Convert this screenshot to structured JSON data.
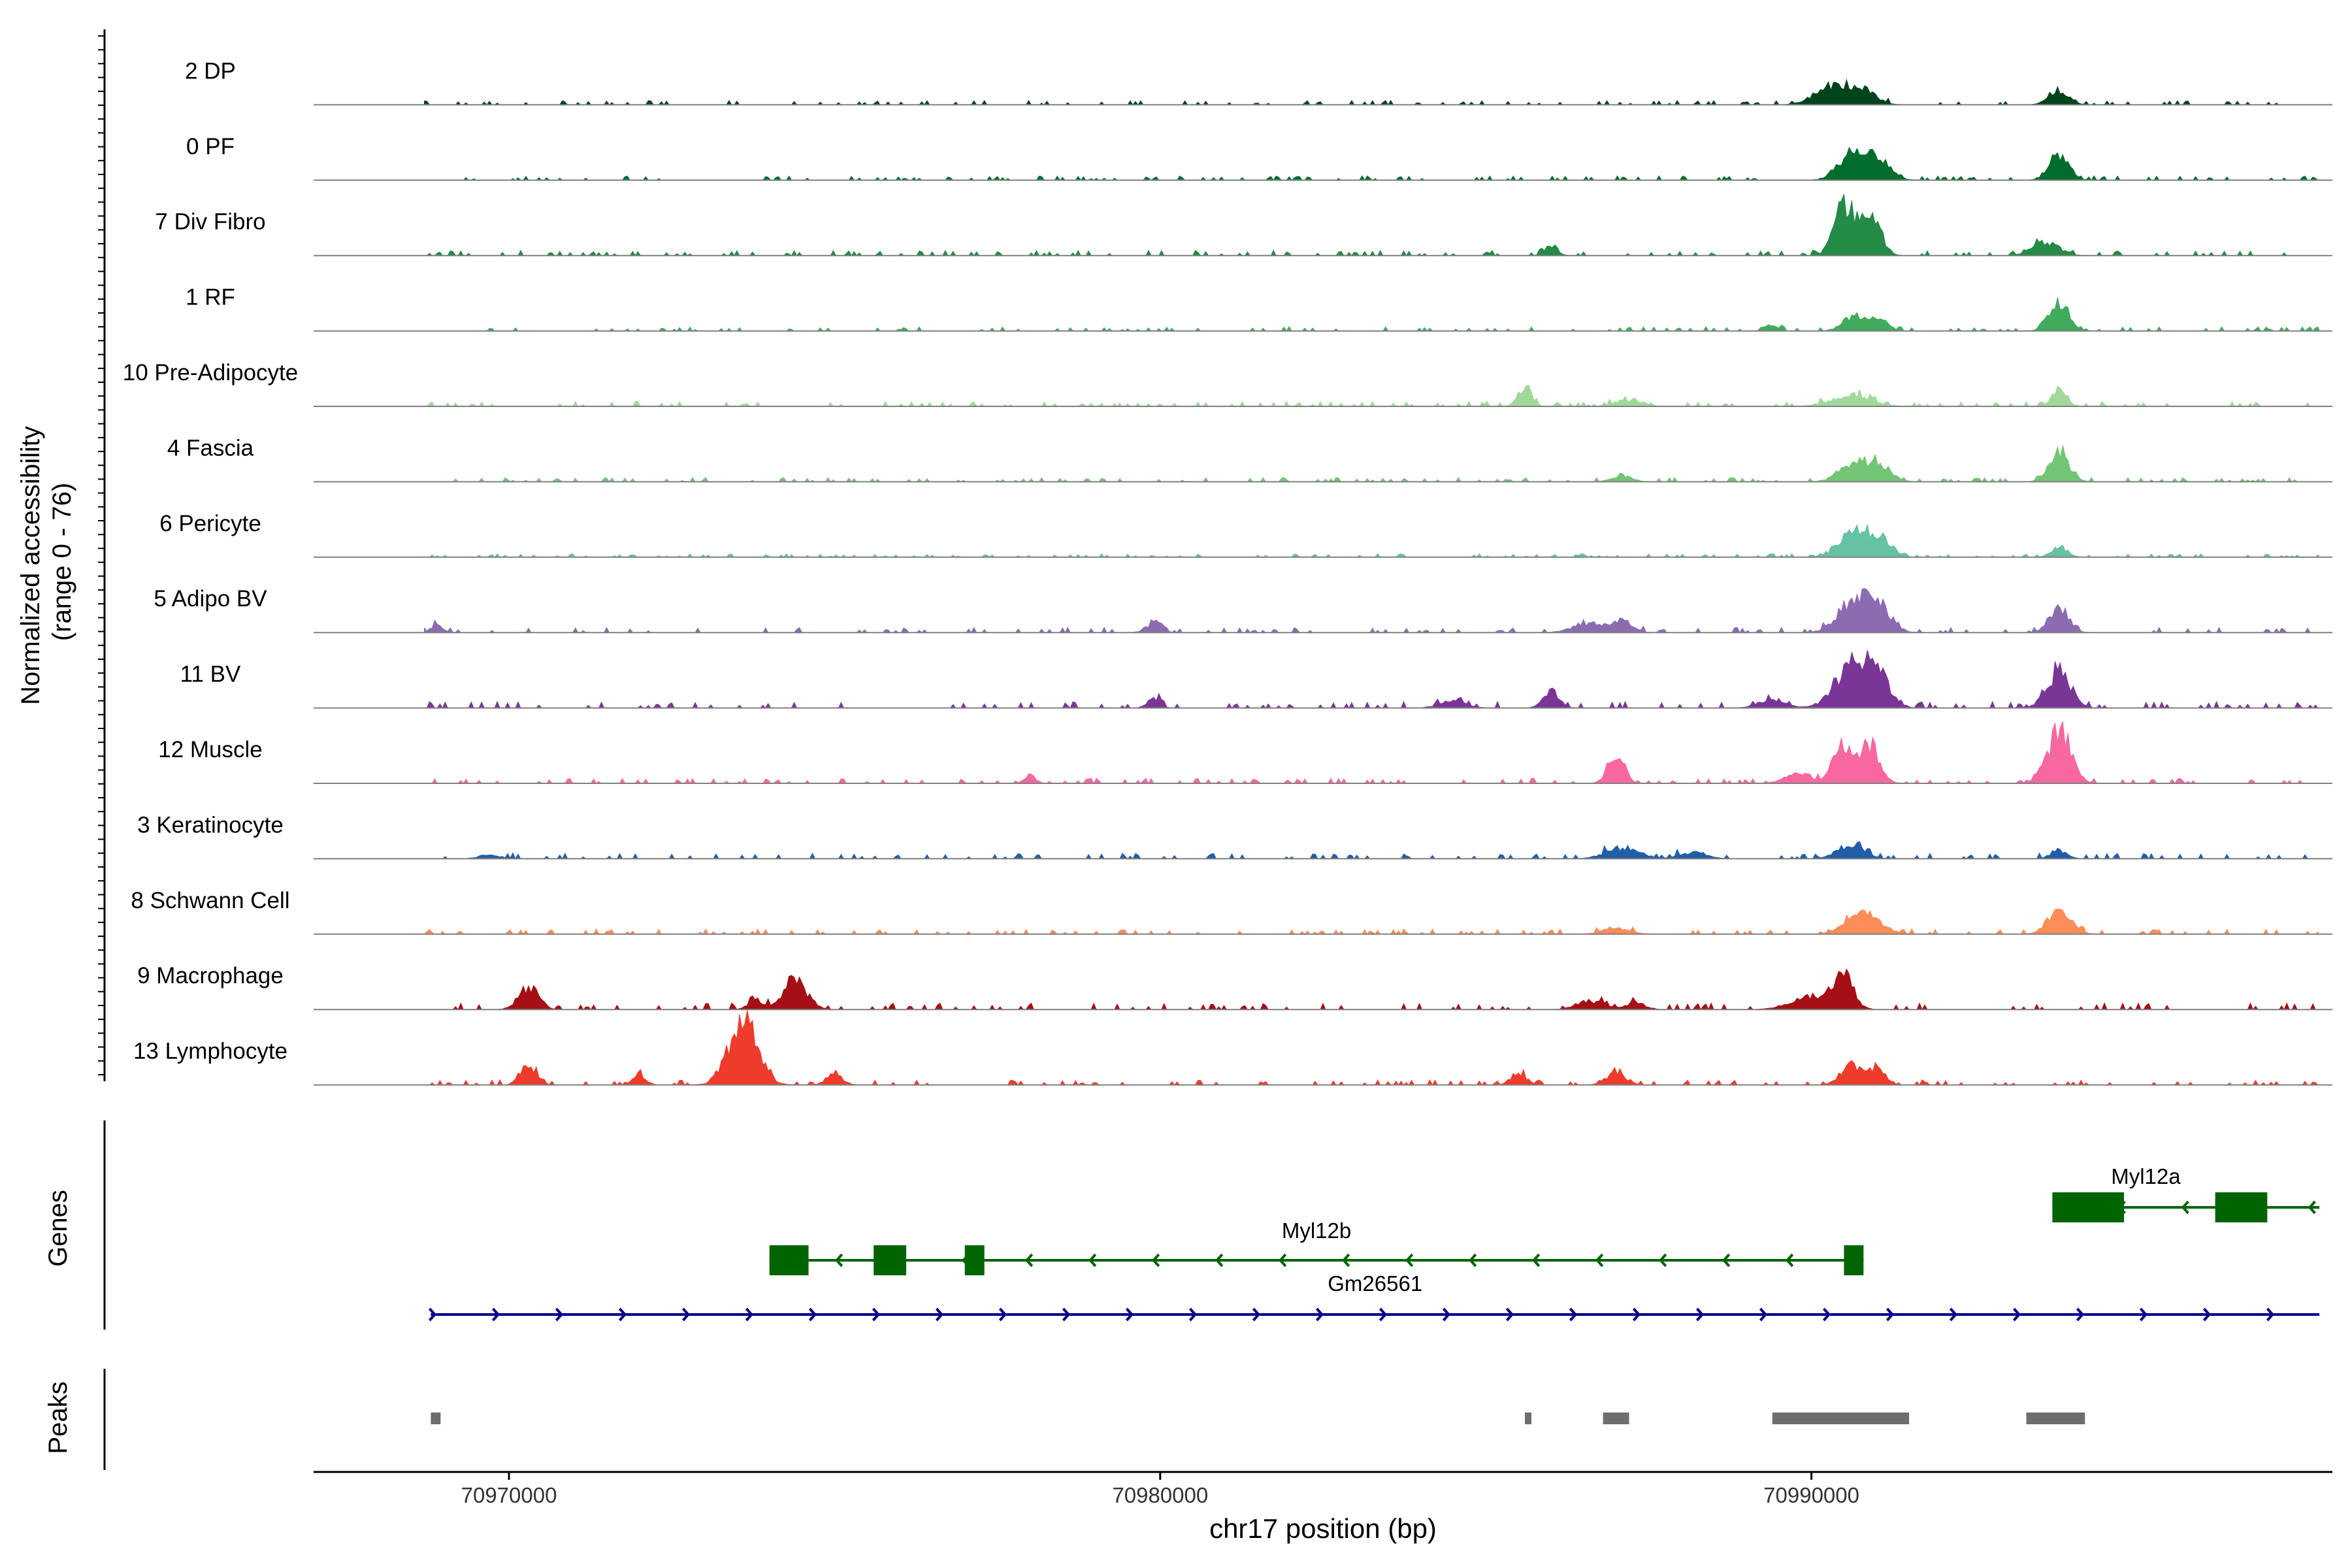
{
  "chart_data": {
    "type": "area",
    "chromosome": "chr17",
    "xlabel": "chr17 position (bp)",
    "xlim": [
      70967000,
      70998000
    ],
    "xticks": [
      70970000,
      70980000,
      70990000
    ],
    "x_tick_labels": [
      "70970000",
      "70980000",
      "70990000"
    ],
    "coverage_ylabel": "Normalized accessibility\n(range 0 - 76)",
    "coverage_ylabel_line1": "Normalized accessibility",
    "coverage_ylabel_line2": "(range 0 - 76)",
    "ylim": [
      0,
      76
    ],
    "genes_ylabel": "Genes",
    "peaks_ylabel": "Peaks",
    "grid": false,
    "tracks": [
      {
        "name": "2 DP",
        "color": "#00441b",
        "bg": 1.0,
        "peaks": [
          [
            70990300,
            8,
            250
          ],
          [
            70990800,
            6,
            200
          ],
          [
            70993800,
            6,
            150
          ]
        ]
      },
      {
        "name": "0 PF",
        "color": "#006d2c",
        "bg": 1.0,
        "peaks": [
          [
            70990600,
            11,
            200
          ],
          [
            70991000,
            9,
            200
          ],
          [
            70993800,
            12,
            150
          ]
        ]
      },
      {
        "name": "7 Div Fibro",
        "color": "#238b45",
        "bg": 1.2,
        "peaks": [
          [
            70990500,
            22,
            150
          ],
          [
            70990900,
            21,
            150
          ],
          [
            70993600,
            6,
            200
          ],
          [
            70986000,
            4,
            100
          ]
        ]
      },
      {
        "name": "1 RF",
        "color": "#41ab5d",
        "bg": 1.0,
        "peaks": [
          [
            70990600,
            6,
            150
          ],
          [
            70991000,
            6,
            150
          ],
          [
            70993800,
            13,
            150
          ],
          [
            70989400,
            3,
            100
          ]
        ]
      },
      {
        "name": "10 Pre-Adipocyte",
        "color": "#a1d99b",
        "bg": 1.2,
        "peaks": [
          [
            70985600,
            9,
            100
          ],
          [
            70990600,
            5,
            300
          ],
          [
            70993800,
            6,
            120
          ],
          [
            70987200,
            3,
            200
          ]
        ]
      },
      {
        "name": "4 Fascia",
        "color": "#74c476",
        "bg": 1.0,
        "peaks": [
          [
            70990600,
            7,
            200
          ],
          [
            70991000,
            8,
            200
          ],
          [
            70993800,
            14,
            150
          ],
          [
            70987100,
            3,
            150
          ]
        ]
      },
      {
        "name": "6 Pericyte",
        "color": "#66c2a4",
        "bg": 0.8,
        "peaks": [
          [
            70990700,
            12,
            250
          ],
          [
            70991100,
            6,
            150
          ],
          [
            70993800,
            5,
            120
          ]
        ]
      },
      {
        "name": "5 Adipo BV",
        "color": "#8c6bb1",
        "bg": 1.2,
        "peaks": [
          [
            70990600,
            12,
            220
          ],
          [
            70991000,
            13,
            200
          ],
          [
            70993800,
            10,
            150
          ],
          [
            70986600,
            4,
            250
          ],
          [
            70987100,
            5,
            150
          ],
          [
            70979900,
            4,
            120
          ],
          [
            70968900,
            3,
            100
          ]
        ]
      },
      {
        "name": "11 BV",
        "color": "#7a3696",
        "bg": 1.5,
        "peaks": [
          [
            70990600,
            18,
            250
          ],
          [
            70991000,
            14,
            200
          ],
          [
            70993800,
            16,
            180
          ],
          [
            70986000,
            8,
            120
          ],
          [
            70989400,
            4,
            200
          ],
          [
            70979900,
            4,
            100
          ],
          [
            70984500,
            3,
            200
          ]
        ]
      },
      {
        "name": "12 Muscle",
        "color": "#f768a1",
        "bg": 1.2,
        "peaks": [
          [
            70990500,
            17,
            150
          ],
          [
            70990900,
            16,
            150
          ],
          [
            70993800,
            23,
            180
          ],
          [
            70987000,
            14,
            120
          ],
          [
            70978000,
            4,
            80
          ],
          [
            70989800,
            5,
            200
          ]
        ]
      },
      {
        "name": "3 Keratinocyte",
        "color": "#225ea8",
        "bg": 1.3,
        "peaks": [
          [
            70990600,
            6,
            200
          ],
          [
            70993800,
            4,
            120
          ],
          [
            70987100,
            5,
            250
          ],
          [
            70988200,
            3,
            200
          ],
          [
            70969700,
            2,
            150
          ]
        ]
      },
      {
        "name": "8 Schwann Cell",
        "color": "#fc8d59",
        "bg": 1.2,
        "peaks": [
          [
            70990800,
            10,
            250
          ],
          [
            70993800,
            10,
            180
          ],
          [
            70987000,
            3,
            200
          ]
        ]
      },
      {
        "name": "9 Macrophage",
        "color": "#a50f15",
        "bg": 1.5,
        "peaks": [
          [
            70990500,
            14,
            150
          ],
          [
            70990000,
            6,
            300
          ],
          [
            70974400,
            13,
            180
          ],
          [
            70970300,
            10,
            150
          ],
          [
            70973800,
            4,
            120
          ],
          [
            70986600,
            4,
            200
          ],
          [
            70987300,
            3,
            150
          ]
        ]
      },
      {
        "name": "13 Lymphocyte",
        "color": "#ef3b2c",
        "bg": 1.2,
        "peaks": [
          [
            70973600,
            30,
            220
          ],
          [
            70970300,
            9,
            120
          ],
          [
            70990600,
            10,
            150
          ],
          [
            70991000,
            8,
            120
          ],
          [
            70975000,
            5,
            120
          ],
          [
            70972000,
            4,
            100
          ],
          [
            70985500,
            5,
            120
          ],
          [
            70987000,
            5,
            150
          ]
        ]
      }
    ],
    "genes": [
      {
        "name": "Myl12b",
        "color": "#006400",
        "strand": "-",
        "start": 70974000,
        "end": 70990800,
        "row": 1,
        "exons": [
          [
            70974000,
            70974600
          ],
          [
            70975600,
            70976100
          ],
          [
            70977000,
            70977300
          ],
          [
            70990500,
            70990800
          ]
        ]
      },
      {
        "name": "Myl12a",
        "color": "#006400",
        "strand": "-",
        "start": 70993700,
        "end": 70997800,
        "row": 0,
        "exons": [
          [
            70993700,
            70994800
          ],
          [
            70996200,
            70997000
          ]
        ]
      },
      {
        "name": "Gm26561",
        "color": "#00008b",
        "strand": "+",
        "start": 70968800,
        "end": 70997800,
        "row": 2,
        "exons": []
      }
    ],
    "peak_regions": [
      [
        70968800,
        70968950
      ],
      [
        70985600,
        70985700
      ],
      [
        70986800,
        70987200
      ],
      [
        70989400,
        70991500
      ],
      [
        70993300,
        70994200
      ]
    ]
  }
}
